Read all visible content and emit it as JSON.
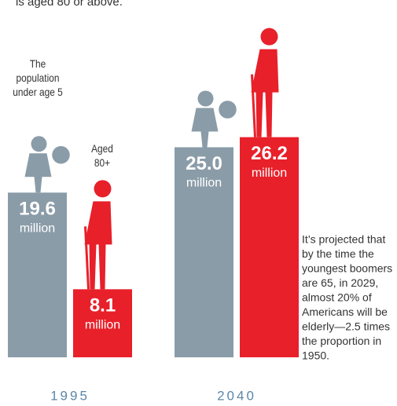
{
  "chart_data": {
    "type": "bar",
    "title": "is aged 80 or above.",
    "categories": [
      "1995",
      "2040"
    ],
    "series": [
      {
        "name": "The population under age 5",
        "color": "#8a9ca8",
        "values": [
          19.6,
          25.0
        ],
        "value_labels": [
          "19.6",
          "25.0"
        ]
      },
      {
        "name": "Aged 80+",
        "color": "#e8202a",
        "values": [
          8.1,
          26.2
        ],
        "value_labels": [
          "8.1",
          "26.2"
        ]
      }
    ],
    "value_unit": "million",
    "note": [
      "It’s projected that",
      "by the time the",
      "youngest boomers",
      "are 65, in 2029,",
      "almost 20% of",
      "Americans will be",
      "elderly—2.5 times",
      "the proportion in",
      "1950."
    ]
  }
}
